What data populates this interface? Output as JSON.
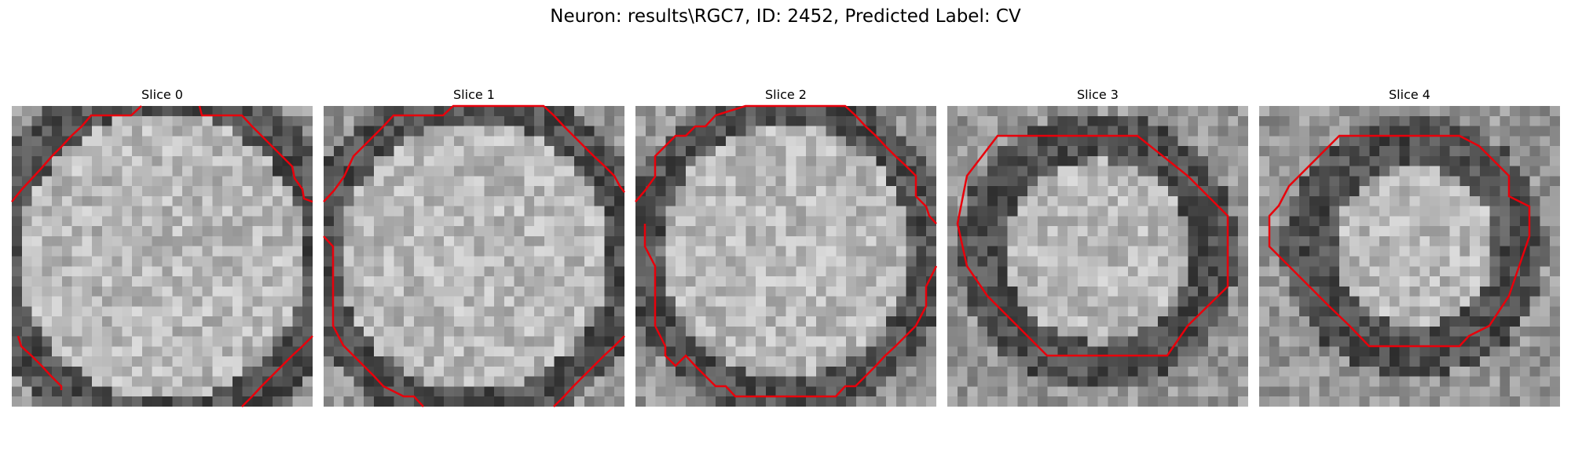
{
  "figure": {
    "title": "Neuron: results\\RGC7, ID: 2452, Predicted Label: CV"
  },
  "panels": [
    {
      "title": "Slice 0",
      "image": "grayscale-microscopy-slice",
      "contour_color": "#e8000b"
    },
    {
      "title": "Slice 1",
      "image": "grayscale-microscopy-slice",
      "contour_color": "#e8000b"
    },
    {
      "title": "Slice 2",
      "image": "grayscale-microscopy-slice",
      "contour_color": "#e8000b"
    },
    {
      "title": "Slice 3",
      "image": "grayscale-microscopy-slice",
      "contour_color": "#e8000b"
    },
    {
      "title": "Slice 4",
      "image": "grayscale-microscopy-slice",
      "contour_color": "#e8000b"
    }
  ]
}
